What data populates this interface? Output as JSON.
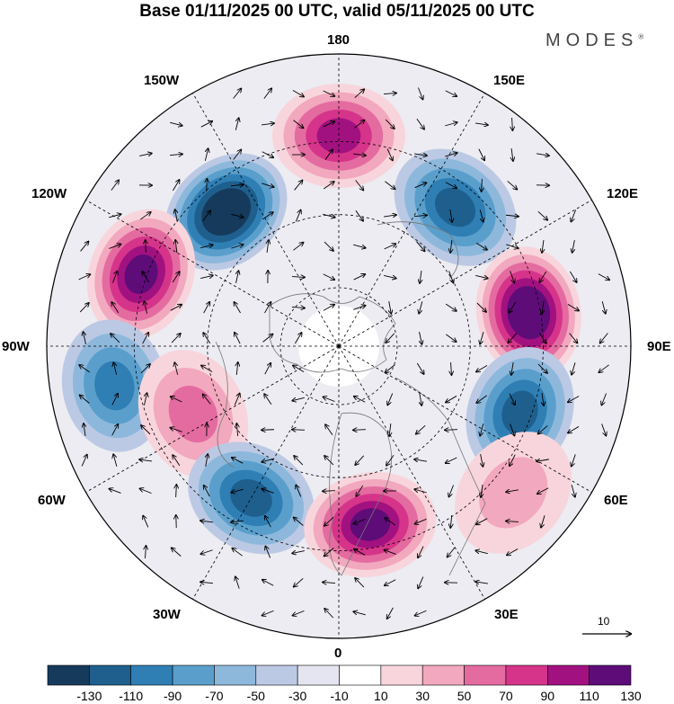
{
  "title": "Base 01/11/2025 00 UTC, valid 05/11/2025 00 UTC",
  "brand": {
    "name": "MODES",
    "mark": "®"
  },
  "map": {
    "projection": "north-polar-stereographic",
    "longitude_labels": {
      "top": "180",
      "bottom": "0",
      "left": "90W",
      "right": "90E",
      "upper_left_1": "150W",
      "upper_left_2": "120W",
      "lower_left_1": "60W",
      "lower_left_2": "30W",
      "upper_right_1": "150E",
      "upper_right_2": "120E",
      "lower_right_1": "60E",
      "lower_right_2": "30E"
    },
    "vector_reference": {
      "label": "10"
    },
    "anomaly_centers": [
      {
        "sign": "negative",
        "magnitude": 130,
        "near_longitude": "140W"
      },
      {
        "sign": "positive",
        "magnitude": 90,
        "near_longitude": "180"
      },
      {
        "sign": "negative",
        "magnitude": 90,
        "near_longitude": "140E"
      },
      {
        "sign": "positive",
        "magnitude": 110,
        "near_longitude": "110W"
      },
      {
        "sign": "positive",
        "magnitude": 130,
        "near_longitude": "100E"
      },
      {
        "sign": "negative",
        "magnitude": 70,
        "near_longitude": "80W"
      },
      {
        "sign": "negative",
        "magnitude": 90,
        "near_longitude": "70E"
      },
      {
        "sign": "positive",
        "magnitude": 50,
        "near_longitude": "65W"
      },
      {
        "sign": "negative",
        "magnitude": 90,
        "near_longitude": "30W"
      },
      {
        "sign": "positive",
        "magnitude": 110,
        "near_longitude": "10E"
      },
      {
        "sign": "positive",
        "magnitude": 30,
        "near_longitude": "50E"
      }
    ]
  },
  "colorbar": {
    "ticks": [
      "-130",
      "-110",
      "-90",
      "-70",
      "-50",
      "-30",
      "-10",
      "10",
      "30",
      "50",
      "70",
      "90",
      "110",
      "130"
    ],
    "colors": [
      "#163a5c",
      "#1e5f8e",
      "#2f7fb5",
      "#5a9fcc",
      "#8db8dc",
      "#bcc9e4",
      "#e4e5f1",
      "#ffffff",
      "#f8d5dc",
      "#f2a8bf",
      "#e46ba0",
      "#d6348a",
      "#a21180",
      "#5d0c78"
    ]
  }
}
